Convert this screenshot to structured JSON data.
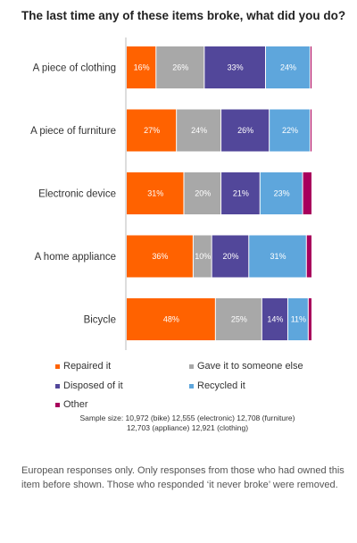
{
  "chart_data": {
    "type": "bar",
    "orientation": "horizontal",
    "stacked": true,
    "title": "The last time any of these items broke, what did you do?",
    "categories": [
      "A piece of clothing",
      "A piece of furniture",
      "Electronic device",
      "A home appliance",
      "Bicycle"
    ],
    "series": [
      {
        "name": "Repaired it",
        "color": "#ff6200",
        "values": [
          16,
          27,
          31,
          36,
          48
        ]
      },
      {
        "name": "Gave it to someone else",
        "color": "#a8a8a8",
        "values": [
          26,
          24,
          20,
          10,
          25
        ]
      },
      {
        "name": "Disposed of it",
        "color": "#52479a",
        "values": [
          33,
          26,
          21,
          20,
          14
        ]
      },
      {
        "name": "Recycled it",
        "color": "#5ea6dc",
        "values": [
          24,
          22,
          23,
          31,
          11
        ]
      },
      {
        "name": "Other",
        "color": "#a8005c",
        "values": [
          1,
          1,
          5,
          3,
          2
        ]
      }
    ],
    "labeled_series": [
      0,
      1,
      2,
      3
    ],
    "value_suffix": "%",
    "xlim": [
      0,
      100
    ],
    "legend_position": "bottom"
  },
  "sample_size": {
    "line1": "Sample size: 10,972 (bike) 12,555 (electronic) 12,708 (furniture)",
    "line2": "12,703 (appliance) 12,921 (clothing)"
  },
  "footnote": "European responses only. Only responses from those who had owned this item before shown. Those who responded ‘it never broke’ were removed."
}
